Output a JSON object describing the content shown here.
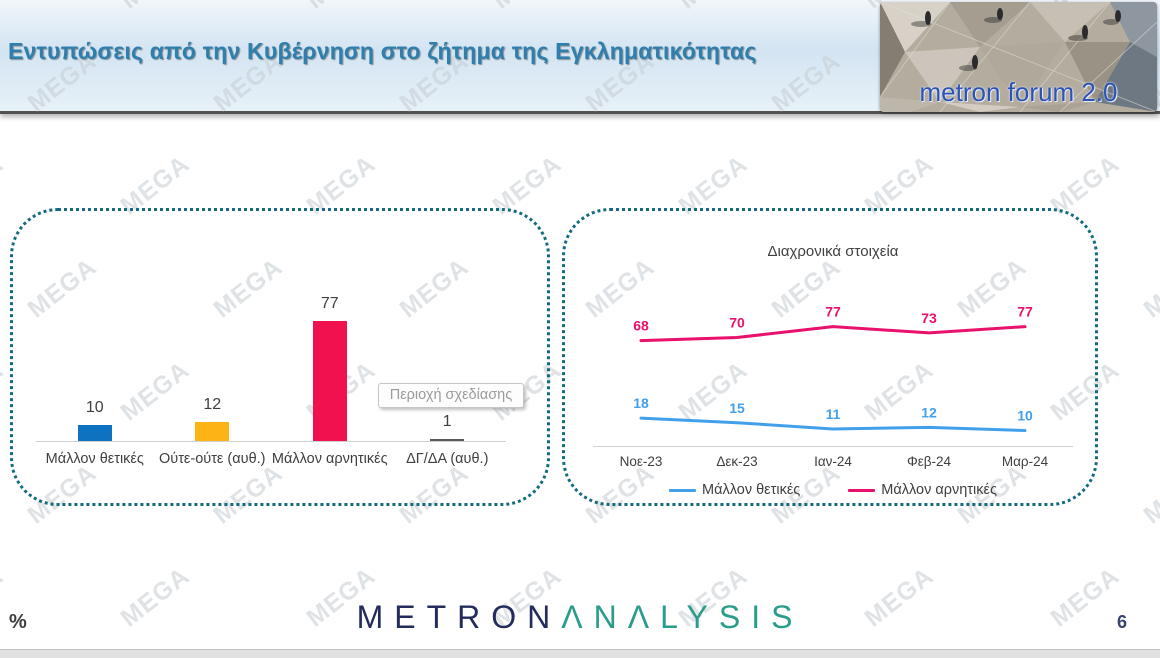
{
  "header": {
    "title": "Εντυπώσεις από την Κυβέρνηση στο ζήτημα της Εγκληματικότητας",
    "logo_text": "metron forum 2.0"
  },
  "tooltip_label": "Περιοχή σχεδίασης",
  "watermark_text": "MEGA",
  "chart_data": [
    {
      "type": "bar",
      "title": "",
      "categories": [
        "Μάλλον θετικές",
        "Ούτε-ούτε (αυθ.)",
        "Μάλλον αρνητικές",
        "ΔΓ/ΔΑ (αυθ.)"
      ],
      "values": [
        10,
        12,
        77,
        1
      ],
      "bar_colors": [
        "#0f72c0",
        "#fbb316",
        "#f1114e",
        "#5a5a5a"
      ],
      "xlabel": "",
      "ylabel": "",
      "ylim": [
        0,
        85
      ],
      "grid": false,
      "data_labels": true
    },
    {
      "type": "line",
      "title": "Διαχρονικά στοιχεία",
      "x": [
        "Νοε-23",
        "Δεκ-23",
        "Ιαν-24",
        "Φεβ-24",
        "Μαρ-24"
      ],
      "series": [
        {
          "name": "Μάλλον θετικές",
          "color": "#41a0e9",
          "values": [
            18,
            15,
            11,
            12,
            10
          ]
        },
        {
          "name": "Μάλλον αρνητικές",
          "color": "#e9116b",
          "values": [
            68,
            70,
            77,
            73,
            77
          ]
        }
      ],
      "ylim": [
        0,
        90
      ],
      "grid": false,
      "legend_position": "bottom",
      "data_labels": true
    }
  ],
  "footer": {
    "brand_part1": "METRON",
    "brand_part2": "ΛNΛLYSIS",
    "percent_label": "%",
    "page_number": "6"
  }
}
